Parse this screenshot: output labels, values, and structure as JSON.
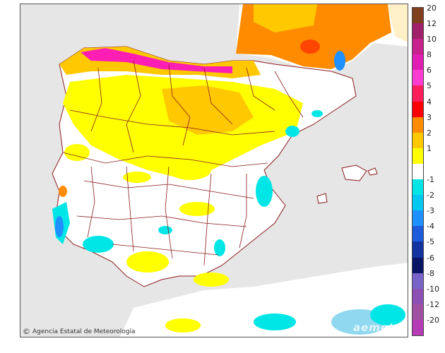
{
  "credit": "Agencia Estatal de Meteorología",
  "watermark": "aemet",
  "legend": [
    {
      "label": "20",
      "color": "#7f3f1f"
    },
    {
      "label": "12",
      "color": "#a0206a"
    },
    {
      "label": "10",
      "color": "#c8208c"
    },
    {
      "label": "8",
      "color": "#e01eb4"
    },
    {
      "label": "6",
      "color": "#ff3cd2"
    },
    {
      "label": "5",
      "color": "#ff1e5a"
    },
    {
      "label": "4",
      "color": "#ff0000"
    },
    {
      "label": "3",
      "color": "#ff8c00"
    },
    {
      "label": "2",
      "color": "#ffc800"
    },
    {
      "label": "1",
      "color": "#ffff00"
    },
    {
      "label": "",
      "color": "#ffffff"
    },
    {
      "label": "-1",
      "color": "#00e6e6"
    },
    {
      "label": "-2",
      "color": "#00c8f0"
    },
    {
      "label": "-3",
      "color": "#1e90ff"
    },
    {
      "label": "-4",
      "color": "#1e5adc"
    },
    {
      "label": "-5",
      "color": "#1432a0"
    },
    {
      "label": "-6",
      "color": "#0a1464"
    },
    {
      "label": "-8",
      "color": "#7864c8"
    },
    {
      "label": "-10",
      "color": "#8c50b4"
    },
    {
      "label": "-12",
      "color": "#a050a0"
    },
    {
      "label": "-20",
      "color": "#b43cb4"
    }
  ],
  "colors": {
    "sea": "#e6e6e6",
    "land": "#ffffff",
    "border": "#8b1a1a",
    "yellow": "#ffff00",
    "gold": "#ffc800",
    "orange": "#ff8c00",
    "magenta": "#ff1eb4",
    "cyan": "#00e6e6",
    "lightblue": "#8fd8f0"
  }
}
